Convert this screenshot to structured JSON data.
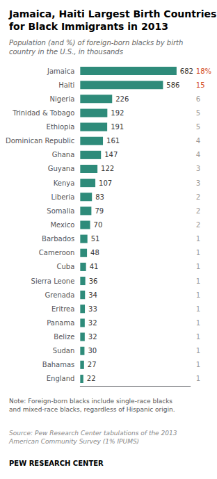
{
  "chart_data": {
    "type": "bar",
    "orientation": "horizontal",
    "title": "Jamaica, Haiti Largest Birth Countries\nfor Black Immigrants in 2013",
    "subtitle": "Population (and %) of foreign-born blacks by birth\ncountry in the U.S., in thousands",
    "categories": [
      "Jamaica",
      "Haiti",
      "Nigeria",
      "Trinidad & Tobago",
      "Ethiopia",
      "Dominican Republic",
      "Ghana",
      "Guyana",
      "Kenya",
      "Liberia",
      "Somalia",
      "Mexico",
      "Barbados",
      "Cameroon",
      "Cuba",
      "Sierra Leone",
      "Grenada",
      "Eritrea",
      "Panama",
      "Belize",
      "Sudan",
      "Bahamas",
      "England"
    ],
    "values": [
      682,
      586,
      226,
      192,
      191,
      161,
      147,
      122,
      107,
      83,
      79,
      70,
      51,
      48,
      41,
      36,
      34,
      33,
      32,
      32,
      30,
      27,
      22
    ],
    "color": "#2e8b7a",
    "data_labels": true,
    "xlim": [
      0,
      780
    ],
    "tick_labels": "y",
    "grid": false,
    "annotations": [
      {
        "category": "Jamaica",
        "text": "18%",
        "color": "#d2491e"
      },
      {
        "category": "Haiti",
        "text": "15",
        "color": "#d2491e"
      },
      {
        "category": "Nigeria",
        "text": "6",
        "color": "#999999"
      },
      {
        "category": "Trinidad & Tobago",
        "text": "5",
        "color": "#999999"
      },
      {
        "category": "Ethiopia",
        "text": "5",
        "color": "#999999"
      },
      {
        "category": "Dominican Republic",
        "text": "4",
        "color": "#999999"
      },
      {
        "category": "Ghana",
        "text": "4",
        "color": "#999999"
      },
      {
        "category": "Guyana",
        "text": "3",
        "color": "#999999"
      },
      {
        "category": "Kenya",
        "text": "3",
        "color": "#999999"
      },
      {
        "category": "Liberia",
        "text": "2",
        "color": "#999999"
      },
      {
        "category": "Somalia",
        "text": "2",
        "color": "#999999"
      },
      {
        "category": "Mexico",
        "text": "2",
        "color": "#999999"
      },
      {
        "category": "Barbados",
        "text": "1",
        "color": "#999999"
      },
      {
        "category": "Cameroon",
        "text": "1",
        "color": "#999999"
      },
      {
        "category": "Cuba",
        "text": "1",
        "color": "#999999"
      },
      {
        "category": "Sierra Leone",
        "text": "1",
        "color": "#999999"
      },
      {
        "category": "Grenada",
        "text": "1",
        "color": "#999999"
      },
      {
        "category": "Eritrea",
        "text": "1",
        "color": "#999999"
      },
      {
        "category": "Panama",
        "text": "1",
        "color": "#999999"
      },
      {
        "category": "Belize",
        "text": "1",
        "color": "#999999"
      },
      {
        "category": "Sudan",
        "text": "1",
        "color": "#999999"
      },
      {
        "category": "Bahamas",
        "text": "1",
        "color": "#999999"
      },
      {
        "category": "England",
        "text": "1",
        "color": "#999999"
      }
    ],
    "note": "Note: Foreign-born blacks include single-race blacks and mixed-race blacks, regardless of Hispanic origin.",
    "source": "Source: Pew Research Center tabulations of the 2013 American Community Survey (1% IPUMS)",
    "credit": "PEW RESEARCH CENTER"
  }
}
